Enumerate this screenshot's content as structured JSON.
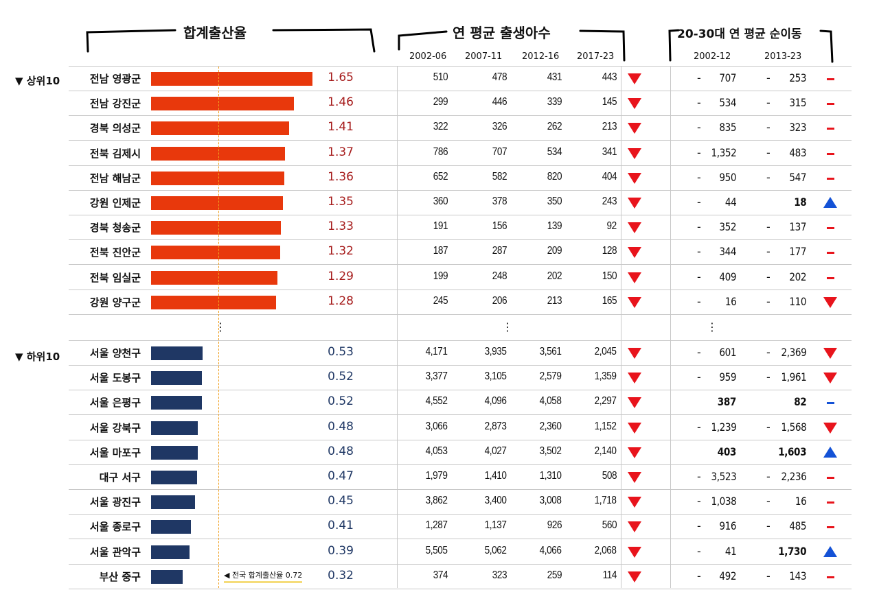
{
  "headers": {
    "tfr": "합계출산율",
    "births": "연 평균 출생아수",
    "migration": "20-30대 연 평균 순이동"
  },
  "births_periods": [
    "2002-06",
    "2007-11",
    "2012-16",
    "2017-23"
  ],
  "migration_periods": [
    "2002-12",
    "2013-23"
  ],
  "sections": {
    "top": "▼ 상위10",
    "bottom": "▼ 하위10"
  },
  "ellipsis": "⋮",
  "national": {
    "label": "전국 합계출산율 0.72",
    "value": 0.72
  },
  "colors": {
    "top_bar": "#e8380c",
    "bottom_bar": "#1f3764",
    "top_rate": "#a61c1c",
    "bottom_rate": "#1f3764",
    "down": "#e8141c",
    "up": "#1452d6",
    "neg": "#e8141c",
    "pos": "#1452d6"
  },
  "top10": [
    {
      "name": "전남 영광군",
      "tfr": "1.65",
      "tfr_value": 1.65,
      "b": [
        "510",
        "478",
        "431",
        "443"
      ],
      "b_trend": "down",
      "m1_sign": "-",
      "m1": "707",
      "m2_sign": "-",
      "m2": "253",
      "m_trend": "minus"
    },
    {
      "name": "전남 강진군",
      "tfr": "1.46",
      "tfr_value": 1.46,
      "b": [
        "299",
        "446",
        "339",
        "145"
      ],
      "b_trend": "down",
      "m1_sign": "-",
      "m1": "534",
      "m2_sign": "-",
      "m2": "315",
      "m_trend": "minus"
    },
    {
      "name": "경북 의성군",
      "tfr": "1.41",
      "tfr_value": 1.41,
      "b": [
        "322",
        "326",
        "262",
        "213"
      ],
      "b_trend": "down",
      "m1_sign": "-",
      "m1": "835",
      "m2_sign": "-",
      "m2": "323",
      "m_trend": "minus"
    },
    {
      "name": "전북 김제시",
      "tfr": "1.37",
      "tfr_value": 1.37,
      "b": [
        "786",
        "707",
        "534",
        "341"
      ],
      "b_trend": "down",
      "m1_sign": "-",
      "m1": "1,352",
      "m2_sign": "-",
      "m2": "483",
      "m_trend": "minus"
    },
    {
      "name": "전남 해남군",
      "tfr": "1.36",
      "tfr_value": 1.36,
      "b": [
        "652",
        "582",
        "820",
        "404"
      ],
      "b_trend": "down",
      "m1_sign": "-",
      "m1": "950",
      "m2_sign": "-",
      "m2": "547",
      "m_trend": "minus"
    },
    {
      "name": "강원 인제군",
      "tfr": "1.35",
      "tfr_value": 1.35,
      "b": [
        "360",
        "378",
        "350",
        "243"
      ],
      "b_trend": "down",
      "m1_sign": "-",
      "m1": "44",
      "m2_sign": "",
      "m2": "18",
      "m2_bold": true,
      "m_trend": "up"
    },
    {
      "name": "경북 청송군",
      "tfr": "1.33",
      "tfr_value": 1.33,
      "b": [
        "191",
        "156",
        "139",
        "92"
      ],
      "b_trend": "down",
      "m1_sign": "-",
      "m1": "352",
      "m2_sign": "-",
      "m2": "137",
      "m_trend": "minus"
    },
    {
      "name": "전북 진안군",
      "tfr": "1.32",
      "tfr_value": 1.32,
      "b": [
        "187",
        "287",
        "209",
        "128"
      ],
      "b_trend": "down",
      "m1_sign": "-",
      "m1": "344",
      "m2_sign": "-",
      "m2": "177",
      "m_trend": "minus"
    },
    {
      "name": "전북 임실군",
      "tfr": "1.29",
      "tfr_value": 1.29,
      "b": [
        "199",
        "248",
        "202",
        "150"
      ],
      "b_trend": "down",
      "m1_sign": "-",
      "m1": "409",
      "m2_sign": "-",
      "m2": "202",
      "m_trend": "minus"
    },
    {
      "name": "강원 양구군",
      "tfr": "1.28",
      "tfr_value": 1.28,
      "b": [
        "245",
        "206",
        "213",
        "165"
      ],
      "b_trend": "down",
      "m1_sign": "-",
      "m1": "16",
      "m2_sign": "-",
      "m2": "110",
      "m_trend": "down"
    }
  ],
  "bottom10": [
    {
      "name": "서울 양천구",
      "tfr": "0.53",
      "tfr_value": 0.53,
      "b": [
        "4,171",
        "3,935",
        "3,561",
        "2,045"
      ],
      "b_trend": "down",
      "m1_sign": "-",
      "m1": "601",
      "m2_sign": "-",
      "m2": "2,369",
      "m_trend": "down"
    },
    {
      "name": "서울 도봉구",
      "tfr": "0.52",
      "tfr_value": 0.52,
      "b": [
        "3,377",
        "3,105",
        "2,579",
        "1,359"
      ],
      "b_trend": "down",
      "m1_sign": "-",
      "m1": "959",
      "m2_sign": "-",
      "m2": "1,961",
      "m_trend": "down"
    },
    {
      "name": "서울 은평구",
      "tfr": "0.52",
      "tfr_value": 0.52,
      "b": [
        "4,552",
        "4,096",
        "4,058",
        "2,297"
      ],
      "b_trend": "down",
      "m1_sign": "",
      "m1": "387",
      "m1_bold": true,
      "m2_sign": "",
      "m2": "82",
      "m2_bold": true,
      "m_trend": "minus_blue"
    },
    {
      "name": "서울 강북구",
      "tfr": "0.48",
      "tfr_value": 0.48,
      "b": [
        "3,066",
        "2,873",
        "2,360",
        "1,152"
      ],
      "b_trend": "down",
      "m1_sign": "-",
      "m1": "1,239",
      "m2_sign": "-",
      "m2": "1,568",
      "m_trend": "down"
    },
    {
      "name": "서울 마포구",
      "tfr": "0.48",
      "tfr_value": 0.48,
      "b": [
        "4,053",
        "4,027",
        "3,502",
        "2,140"
      ],
      "b_trend": "down",
      "m1_sign": "",
      "m1": "403",
      "m1_bold": true,
      "m2_sign": "",
      "m2": "1,603",
      "m2_bold": true,
      "m_trend": "up"
    },
    {
      "name": "대구 서구",
      "tfr": "0.47",
      "tfr_value": 0.47,
      "b": [
        "1,979",
        "1,410",
        "1,310",
        "508"
      ],
      "b_trend": "down",
      "m1_sign": "-",
      "m1": "3,523",
      "m2_sign": "-",
      "m2": "2,236",
      "m_trend": "minus"
    },
    {
      "name": "서울 광진구",
      "tfr": "0.45",
      "tfr_value": 0.45,
      "b": [
        "3,862",
        "3,400",
        "3,008",
        "1,718"
      ],
      "b_trend": "down",
      "m1_sign": "-",
      "m1": "1,038",
      "m2_sign": "-",
      "m2": "16",
      "m_trend": "minus"
    },
    {
      "name": "서울 종로구",
      "tfr": "0.41",
      "tfr_value": 0.41,
      "b": [
        "1,287",
        "1,137",
        "926",
        "560"
      ],
      "b_trend": "down",
      "m1_sign": "-",
      "m1": "916",
      "m2_sign": "-",
      "m2": "485",
      "m_trend": "minus"
    },
    {
      "name": "서울 관악구",
      "tfr": "0.39",
      "tfr_value": 0.39,
      "b": [
        "5,505",
        "5,062",
        "4,066",
        "2,068"
      ],
      "b_trend": "down",
      "m1_sign": "-",
      "m1": "41",
      "m2_sign": "",
      "m2": "1,730",
      "m2_bold": true,
      "m_trend": "up"
    },
    {
      "name": "부산 중구",
      "tfr": "0.32",
      "tfr_value": 0.32,
      "b": [
        "374",
        "323",
        "259",
        "114"
      ],
      "b_trend": "down",
      "m1_sign": "-",
      "m1": "492",
      "m2_sign": "-",
      "m2": "143",
      "m_trend": "minus"
    }
  ]
}
